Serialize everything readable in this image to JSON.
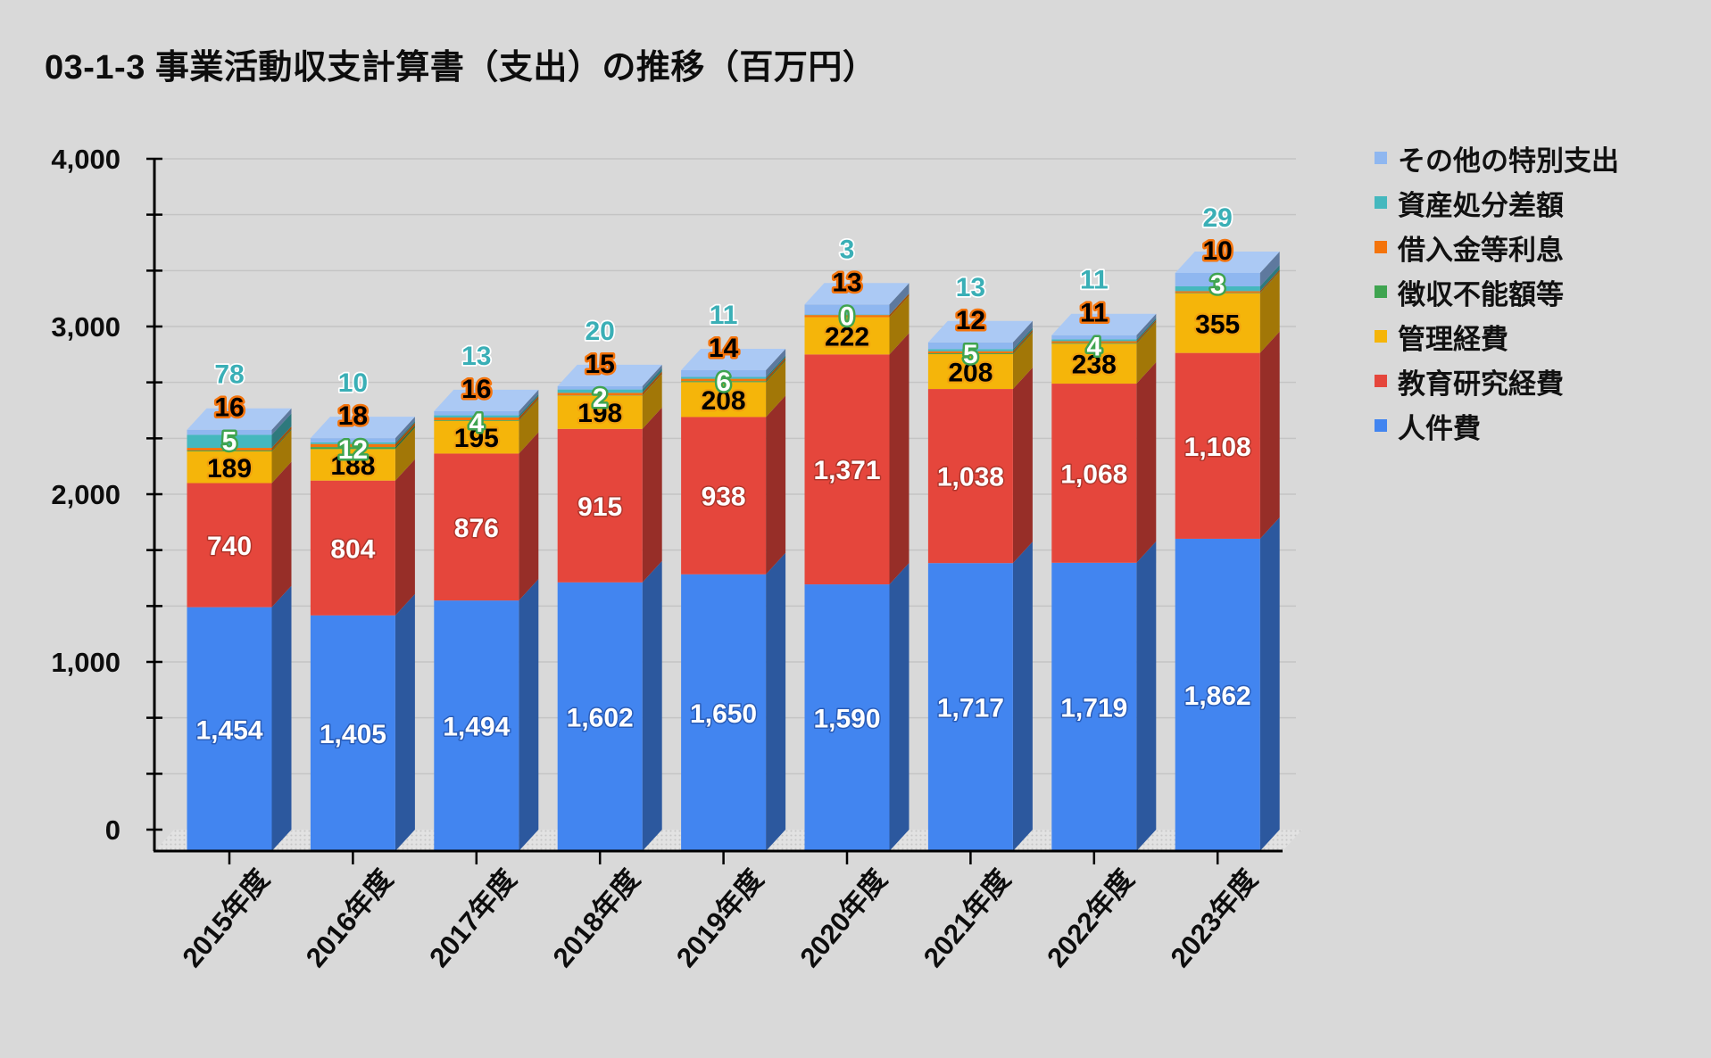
{
  "title": "03-1-3 事業活動収支計算書（支出）の推移（百万円）",
  "background_color": "#d9d9d9",
  "legend": {
    "position": "right",
    "items": [
      {
        "label": "その他の特別支出",
        "color": "#8fb7f0"
      },
      {
        "label": "資産処分差額",
        "color": "#45b8be"
      },
      {
        "label": "借入金等利息",
        "color": "#f4740c"
      },
      {
        "label": "徴収不能額等",
        "color": "#3fa450"
      },
      {
        "label": "管理経費",
        "color": "#f5b50a"
      },
      {
        "label": "教育研究経費",
        "color": "#e5463c"
      },
      {
        "label": "人件費",
        "color": "#4285f0"
      }
    ]
  },
  "y_axis": {
    "min": 0,
    "max": 4000,
    "major_tick_interval": 1000,
    "gridline_interval": 333.33,
    "tick_labels": [
      "0",
      "1,000",
      "2,000",
      "3,000",
      "4,000"
    ]
  },
  "x_axis": {
    "labels": [
      "2015年度",
      "2016年度",
      "2017年度",
      "2018年度",
      "2019年度",
      "2020年度",
      "2021年度",
      "2022年度",
      "2023年度"
    ]
  },
  "chart_data": {
    "type": "bar",
    "subtype": "stacked-3d-column",
    "unit": "百万円",
    "title": "03-1-3 事業活動収支計算書（支出）の推移（百万円）",
    "categories": [
      "2015年度",
      "2016年度",
      "2017年度",
      "2018年度",
      "2019年度",
      "2020年度",
      "2021年度",
      "2022年度",
      "2023年度"
    ],
    "ylim": [
      0,
      4000
    ],
    "grid": true,
    "legend_position": "right",
    "series": [
      {
        "name": "人件費",
        "color": "#4285f0",
        "values": [
          1454,
          1405,
          1494,
          1602,
          1650,
          1590,
          1717,
          1719,
          1862
        ],
        "label_style": "inside",
        "label_text_color": "#ffffff",
        "label_outline_color": "#2a5db8",
        "label_outline_width": 3
      },
      {
        "name": "教育研究経費",
        "color": "#e5463c",
        "values": [
          740,
          804,
          876,
          915,
          938,
          1371,
          1038,
          1068,
          1108
        ],
        "label_style": "inside",
        "label_text_color": "#ffffff",
        "label_outline_color": "#b0362c",
        "label_outline_width": 3
      },
      {
        "name": "管理経費",
        "color": "#f5b50a",
        "values": [
          189,
          188,
          195,
          198,
          208,
          222,
          208,
          238,
          355
        ],
        "label_style": "inside",
        "label_text_color": "#000000",
        "label_outline_color": "#f2a20d",
        "label_outline_width": 4.5
      },
      {
        "name": "徴収不能額等",
        "color": "#3fa450",
        "values": [
          5,
          12,
          4,
          2,
          6,
          0,
          5,
          4,
          3
        ],
        "label_style": "above-0",
        "label_text_color": "#ffffff",
        "label_outline_color": "#3fa450",
        "label_outline_width": 5
      },
      {
        "name": "借入金等利息",
        "color": "#f4740c",
        "values": [
          16,
          18,
          16,
          15,
          14,
          13,
          12,
          11,
          10
        ],
        "label_style": "above-1",
        "label_text_color": "#000000",
        "label_outline_color": "#f4740c",
        "label_outline_width": 5
      },
      {
        "name": "資産処分差額",
        "color": "#45b8be",
        "values": [
          78,
          10,
          13,
          20,
          11,
          3,
          13,
          11,
          29
        ],
        "label_style": "above-2",
        "label_text_color": "#3aafb6",
        "label_outline_color": "#ffffff",
        "label_outline_width": 3.5
      },
      {
        "name": "その他の特別支出",
        "color": "#8fb7f0",
        "values": [
          30,
          25,
          25,
          20,
          40,
          60,
          40,
          25,
          80
        ],
        "values_estimated_from_pixels": true,
        "labels_shown": false
      }
    ]
  }
}
